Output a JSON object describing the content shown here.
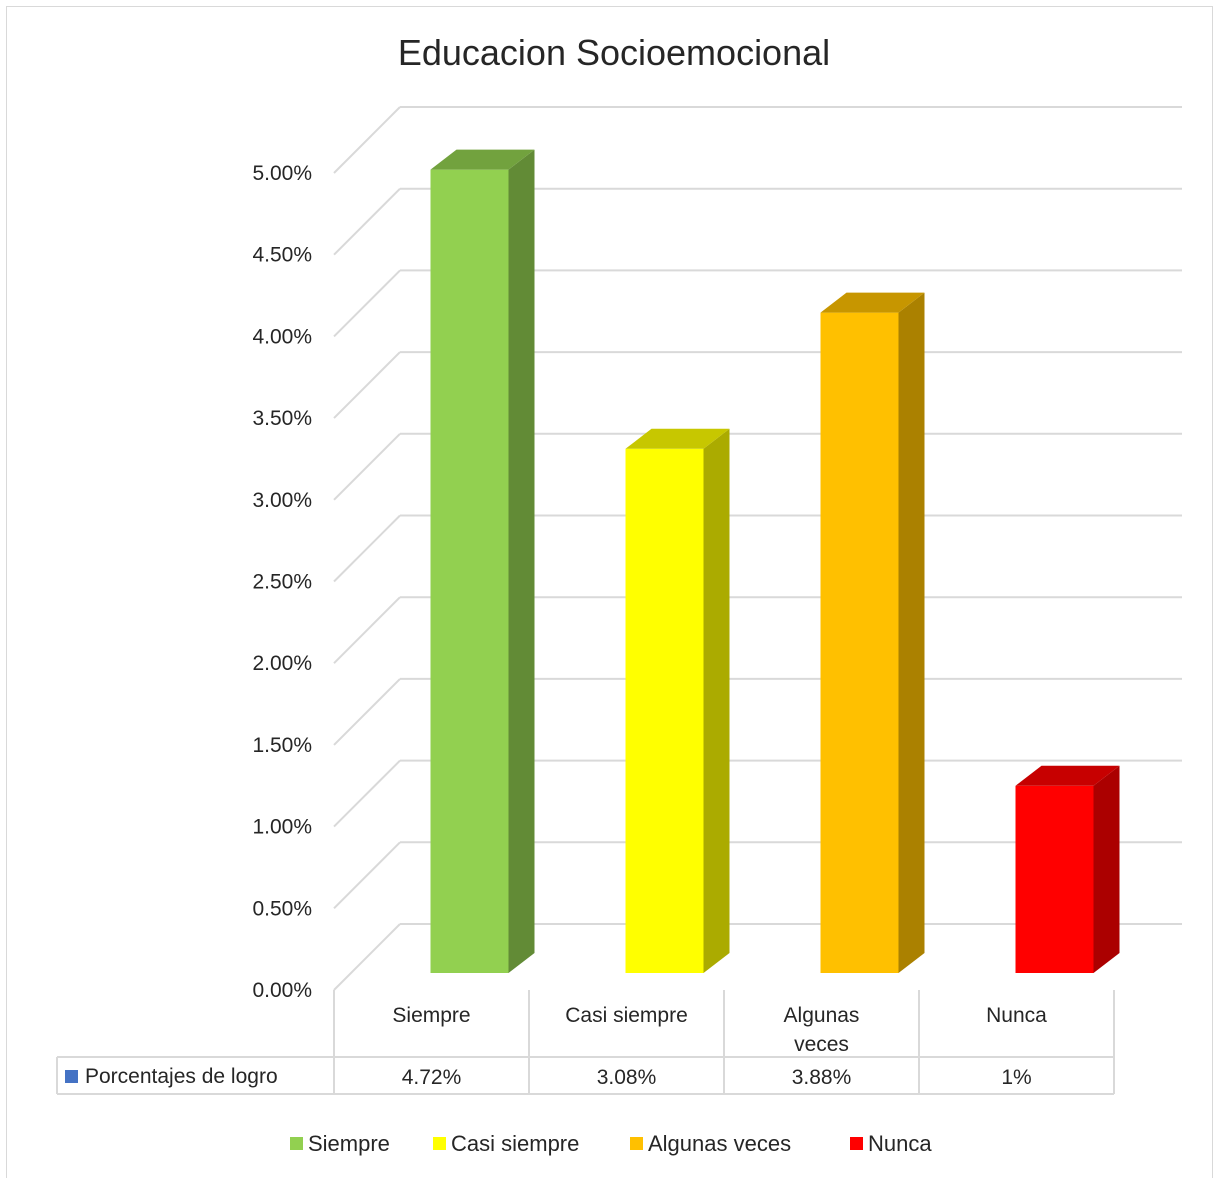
{
  "chart_data": {
    "type": "bar",
    "title": "Educacion Socioemocional",
    "categories": [
      "Siempre",
      "Casi siempre",
      "Algunas veces",
      "Nunca"
    ],
    "category_display": [
      [
        "Siempre"
      ],
      [
        "Casi siempre"
      ],
      [
        "Algunas",
        "veces"
      ],
      [
        "Nunca"
      ]
    ],
    "series": [
      {
        "name": "Porcentajes de logro",
        "values": [
          4.72,
          3.08,
          3.88,
          1.1
        ],
        "value_labels": [
          "4.72%",
          "3.08%",
          "3.88%",
          "1%"
        ],
        "color": "#4472c4"
      }
    ],
    "bar_colors": [
      "#92d050",
      "#ffff00",
      "#ffc000",
      "#ff0000"
    ],
    "ylim": [
      0,
      5
    ],
    "yticks": [
      "0.00%",
      "0.50%",
      "1.00%",
      "1.50%",
      "2.00%",
      "2.50%",
      "3.00%",
      "3.50%",
      "4.00%",
      "4.50%",
      "5.00%"
    ],
    "grid": true,
    "style_3d": true,
    "data_table": true,
    "legend": {
      "position": "bottom",
      "entries": [
        "Siempre",
        "Casi siempre",
        "Algunas veces",
        "Nunca"
      ]
    }
  }
}
